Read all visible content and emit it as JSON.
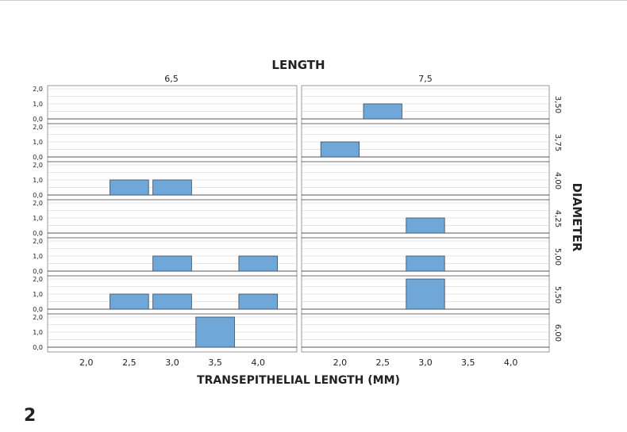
{
  "figure_label": "2",
  "colors": {
    "bar_fill": "#6FA8D8",
    "bar_stroke": "#3a4a5c",
    "grid": "#cccccc",
    "axis": "#555555"
  },
  "chart_data": {
    "type": "bar",
    "title": "LENGTH",
    "row_label": "DIAMETER",
    "xlabel": "TRANSEPITHELIAL LENGTH (MM)",
    "column_panels": [
      "6,5",
      "7,5"
    ],
    "row_panels": [
      "3,50",
      "3,75",
      "4,00",
      "4,25",
      "5,00",
      "5,50",
      "6,00"
    ],
    "x_ticks": [
      "2,0",
      "2,5",
      "3,0",
      "3,5",
      "4,0"
    ],
    "x_tick_values": [
      2.0,
      2.5,
      3.0,
      3.5,
      4.0
    ],
    "xlim": [
      1.55,
      4.45
    ],
    "y_ticks": [
      "0,0",
      "1,0",
      "2,0"
    ],
    "ylim": [
      0,
      2
    ],
    "bin_width": 0.45,
    "grid": true,
    "bars": [
      {
        "diameter": "3,50",
        "length": "7,5",
        "x": 2.5,
        "value": 1
      },
      {
        "diameter": "3,75",
        "length": "7,5",
        "x": 2.0,
        "value": 1
      },
      {
        "diameter": "4,00",
        "length": "6,5",
        "x": 2.5,
        "value": 1
      },
      {
        "diameter": "4,00",
        "length": "6,5",
        "x": 3.0,
        "value": 1
      },
      {
        "diameter": "4,25",
        "length": "7,5",
        "x": 3.0,
        "value": 1
      },
      {
        "diameter": "5,00",
        "length": "6,5",
        "x": 3.0,
        "value": 1
      },
      {
        "diameter": "5,00",
        "length": "6,5",
        "x": 4.0,
        "value": 1
      },
      {
        "diameter": "5,00",
        "length": "7,5",
        "x": 3.0,
        "value": 1
      },
      {
        "diameter": "5,50",
        "length": "6,5",
        "x": 2.5,
        "value": 1
      },
      {
        "diameter": "5,50",
        "length": "6,5",
        "x": 3.0,
        "value": 1
      },
      {
        "diameter": "5,50",
        "length": "6,5",
        "x": 4.0,
        "value": 1
      },
      {
        "diameter": "5,50",
        "length": "7,5",
        "x": 3.0,
        "value": 2
      },
      {
        "diameter": "6,00",
        "length": "6,5",
        "x": 3.5,
        "value": 2
      }
    ]
  }
}
